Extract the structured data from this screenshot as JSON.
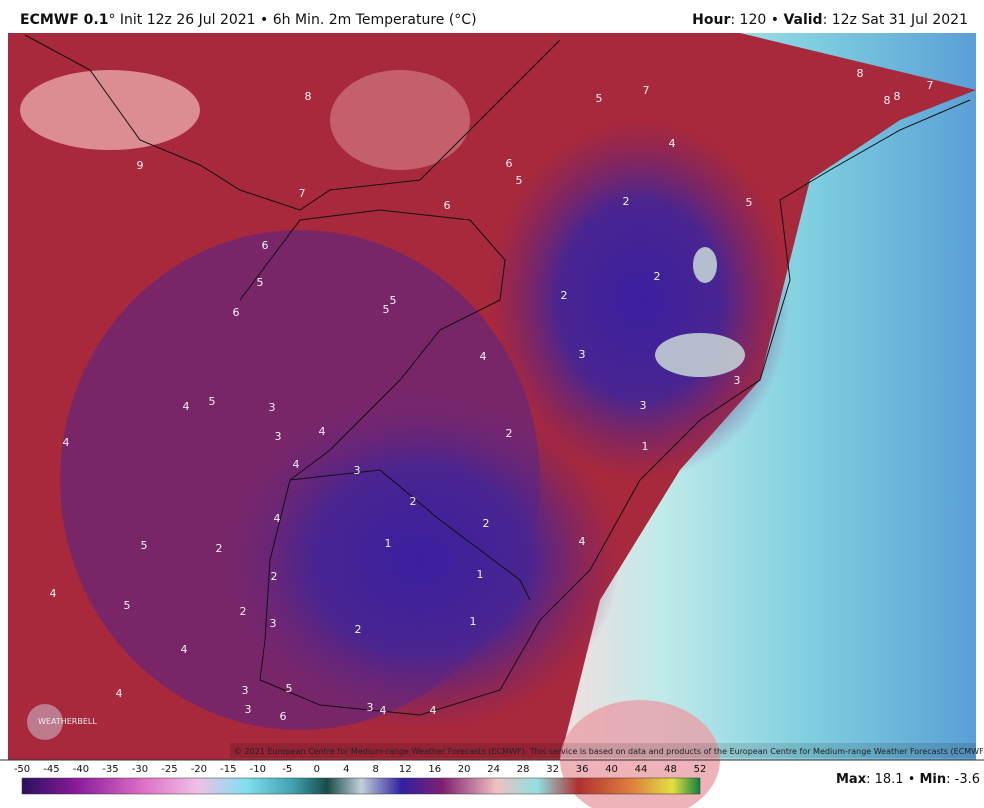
{
  "header": {
    "title_bold": "ECMWF 0.1",
    "title_rest": "° Init 12z 26 Jul 2021 • 6h Min. 2m Temperature (°C)",
    "hour_key": "Hour",
    "hour_rest": ": 120 • ",
    "valid_key": "Valid",
    "valid_rest": ": 12z Sat 31 Jul 2021"
  },
  "map": {
    "labels": [
      "9",
      "8",
      "7",
      "6",
      "5",
      "6",
      "5",
      "5",
      "6",
      "6",
      "5",
      "5",
      "7",
      "4",
      "2",
      "5",
      "2",
      "2",
      "4",
      "3",
      "3",
      "3",
      "2",
      "1",
      "4",
      "5",
      "3",
      "3",
      "4",
      "4",
      "4",
      "3",
      "2",
      "2",
      "4",
      "4",
      "5",
      "2",
      "1",
      "1",
      "2",
      "4",
      "5",
      "2",
      "3",
      "2",
      "1",
      "4",
      "4",
      "3",
      "5",
      "3",
      "6",
      "3",
      "4",
      "4",
      "8",
      "8",
      "8",
      "7"
    ],
    "copyright": "© 2021 European Centre for Medium-range Weather Forecasts (ECMWF). This service is based on data and products of the European Centre for Medium-range Weather Forecasts (ECMWF).",
    "logo": "WEATHERBELL"
  },
  "colorbar": {
    "ticks": [
      "-50",
      "-45",
      "-40",
      "-35",
      "-30",
      "-25",
      "-20",
      "-15",
      "-10",
      "-5",
      "0",
      "4",
      "8",
      "12",
      "16",
      "20",
      "24",
      "28",
      "32",
      "36",
      "40",
      "44",
      "48",
      "52"
    ]
  },
  "footer": {
    "max_key": "Max",
    "max_rest": ": 18.1 • ",
    "min_key": "Min",
    "min_rest": ": -3.6"
  }
}
